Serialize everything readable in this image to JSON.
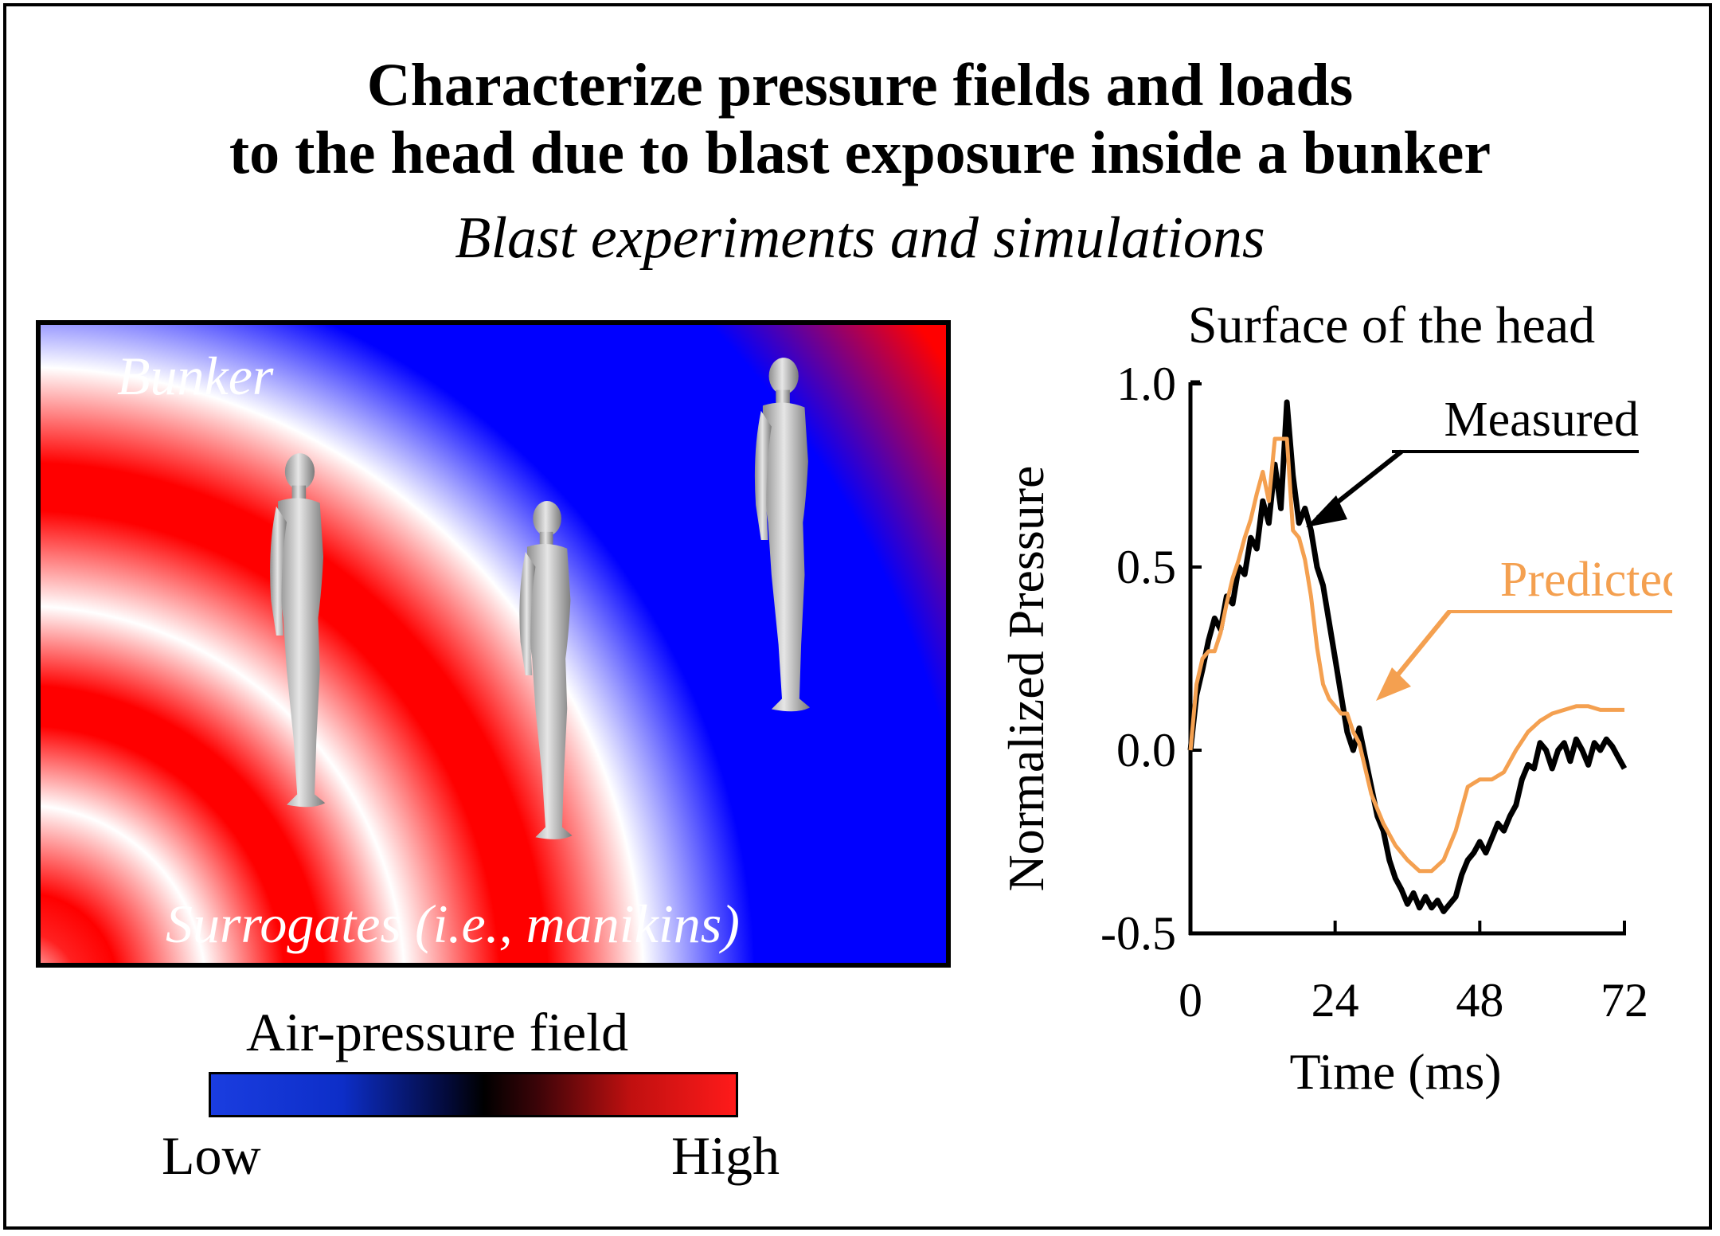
{
  "title": {
    "line1": "Characterize pressure fields and loads",
    "line2": "to the head due to blast exposure inside a bunker"
  },
  "subtitle": "Blast experiments and simulations",
  "field_panel": {
    "bunker_label": "Bunker",
    "surrogates_label": "Surrogates (i.e., manikins)",
    "manikin_count": 3
  },
  "colorbar": {
    "title": "Air-pressure field",
    "low_label": "Low",
    "high_label": "High",
    "low_color": "#1a3de0",
    "high_color": "#ff1a1a"
  },
  "chart_data": {
    "type": "line",
    "title": "Surface of the head",
    "xlabel": "Time (ms)",
    "ylabel": "Normalized Pressure",
    "xlim": [
      0,
      72
    ],
    "ylim": [
      -0.5,
      1.0
    ],
    "xticks": [
      "0",
      "24",
      "48",
      "72"
    ],
    "yticks": [
      "1.0",
      "0.5",
      "0.0",
      "-0.5"
    ],
    "series": [
      {
        "name": "Measured",
        "color": "#000000",
        "x": [
          0,
          1,
          2,
          3,
          4,
          5,
          6,
          7,
          8,
          9,
          10,
          11,
          12,
          13,
          14,
          15,
          16,
          17,
          18,
          19,
          20,
          21,
          22,
          23,
          24,
          25,
          26,
          27,
          28,
          29,
          30,
          31,
          32,
          33,
          34,
          35,
          36,
          37,
          38,
          39,
          40,
          41,
          42,
          43,
          44,
          45,
          46,
          47,
          48,
          49,
          50,
          51,
          52,
          53,
          54,
          55,
          56,
          57,
          58,
          59,
          60,
          61,
          62,
          63,
          64,
          65,
          66,
          67,
          68,
          69,
          70,
          71,
          72
        ],
        "y": [
          0.0,
          0.15,
          0.22,
          0.3,
          0.36,
          0.33,
          0.42,
          0.4,
          0.5,
          0.48,
          0.58,
          0.55,
          0.68,
          0.62,
          0.78,
          0.66,
          0.95,
          0.75,
          0.62,
          0.66,
          0.6,
          0.5,
          0.45,
          0.35,
          0.25,
          0.15,
          0.05,
          0.0,
          0.06,
          -0.02,
          -0.1,
          -0.18,
          -0.22,
          -0.3,
          -0.35,
          -0.38,
          -0.42,
          -0.39,
          -0.43,
          -0.4,
          -0.43,
          -0.41,
          -0.44,
          -0.42,
          -0.4,
          -0.34,
          -0.3,
          -0.28,
          -0.25,
          -0.28,
          -0.24,
          -0.2,
          -0.22,
          -0.18,
          -0.15,
          -0.08,
          -0.04,
          -0.05,
          0.02,
          0.0,
          -0.05,
          0.0,
          0.02,
          -0.03,
          0.03,
          0.0,
          -0.04,
          0.02,
          0.0,
          0.03,
          0.01,
          -0.02,
          -0.05
        ]
      },
      {
        "name": "Predicted",
        "color": "#f4a050",
        "x": [
          0,
          1,
          2,
          3,
          4,
          5,
          6,
          7,
          8,
          9,
          10,
          11,
          12,
          13,
          14,
          15,
          16,
          17,
          18,
          19,
          20,
          21,
          22,
          23,
          24,
          25,
          26,
          27,
          28,
          29,
          30,
          32,
          34,
          36,
          38,
          40,
          42,
          44,
          46,
          48,
          50,
          52,
          54,
          56,
          58,
          60,
          62,
          64,
          66,
          68,
          70,
          72
        ],
        "y": [
          0.0,
          0.18,
          0.25,
          0.27,
          0.27,
          0.32,
          0.4,
          0.47,
          0.52,
          0.58,
          0.63,
          0.7,
          0.76,
          0.68,
          0.85,
          0.85,
          0.85,
          0.6,
          0.58,
          0.52,
          0.42,
          0.28,
          0.18,
          0.14,
          0.12,
          0.1,
          0.1,
          0.05,
          0.02,
          -0.05,
          -0.12,
          -0.2,
          -0.26,
          -0.3,
          -0.33,
          -0.33,
          -0.3,
          -0.22,
          -0.1,
          -0.08,
          -0.08,
          -0.06,
          0.0,
          0.05,
          0.08,
          0.1,
          0.11,
          0.12,
          0.12,
          0.11,
          0.11,
          0.11
        ]
      }
    ],
    "annotations": [
      "Measured",
      "Predicted"
    ]
  }
}
